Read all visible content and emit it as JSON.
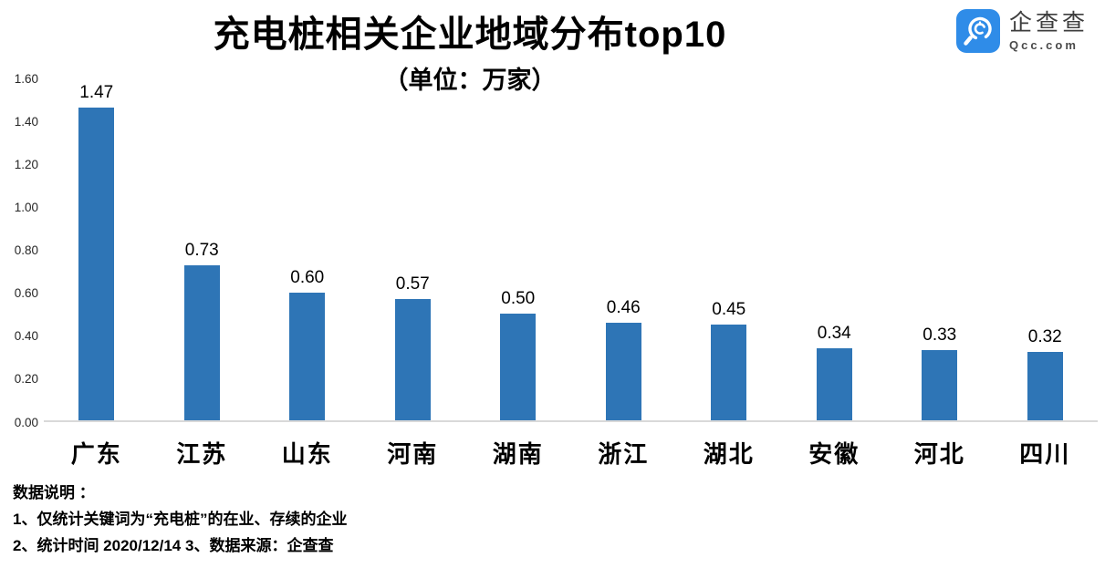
{
  "logo": {
    "name": "企查查",
    "domain": "Qcc.com",
    "brand_color": "#2f8ce8"
  },
  "header": {
    "title": "充电桩相关企业地域分布top10",
    "subtitle": "（单位：万家）"
  },
  "chart_data": {
    "type": "bar",
    "title": "充电桩相关企业地域分布top10",
    "subtitle": "（单位：万家）",
    "unit": "万家",
    "categories": [
      "广东",
      "江苏",
      "山东",
      "河南",
      "湖南",
      "浙江",
      "湖北",
      "安徽",
      "河北",
      "四川"
    ],
    "values": [
      1.47,
      0.73,
      0.6,
      0.57,
      0.5,
      0.46,
      0.45,
      0.34,
      0.33,
      0.32
    ],
    "value_labels": [
      "1.47",
      "0.73",
      "0.60",
      "0.57",
      "0.50",
      "0.46",
      "0.45",
      "0.34",
      "0.33",
      "0.32"
    ],
    "xlabel": "",
    "ylabel": "",
    "ylim": [
      0,
      1.6
    ],
    "yticks": [
      "1.60",
      "1.40",
      "1.20",
      "1.00",
      "0.80",
      "0.60",
      "0.40",
      "0.20",
      "0.00"
    ],
    "grid": false,
    "legend_position": "none",
    "bar_color": "#2e75b6",
    "axis_line_color": "#d9d9d9"
  },
  "notes": {
    "heading": "数据说明 ：",
    "line1": "1、仅统计关键词为“充电桩”的在业、存续的企业",
    "line2": "2、统计时间 2020/12/14   3、数据来源：企查查"
  }
}
